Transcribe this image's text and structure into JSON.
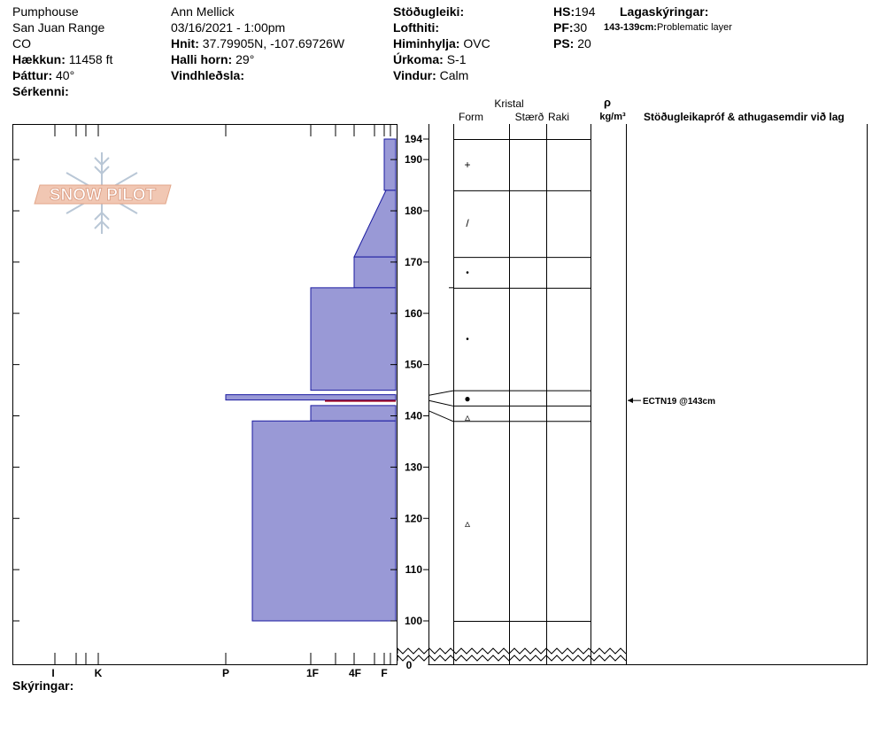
{
  "header": {
    "location": "Pumphouse",
    "range": "San Juan Range",
    "state": "CO",
    "elevation_label": "Hækkun:",
    "elevation": "11458 ft",
    "aspect_label": "Þáttur:",
    "aspect": "40°",
    "features_label": "Sérkenni:",
    "observer": "Ann Mellick",
    "datetime": "03/16/2021 - 1:00pm",
    "coords_label": "Hnit:",
    "coords": "37.79905N, -107.69726W",
    "slope_label": "Halli horn:",
    "slope": "29°",
    "wind_loading_label": "Vindhleðsla:",
    "stability_label": "Stöðugleiki:",
    "air_temp_label": "Lofthiti:",
    "sky_label": "Himinhylja:",
    "sky": "OVC",
    "precip_label": "Úrkoma:",
    "precip": "S-1",
    "wind_label": "Vindur:",
    "wind": "Calm",
    "hs_label": "HS:",
    "hs": "194",
    "pf_label": "PF:",
    "pf": "30",
    "ps_label": "PS:",
    "ps": "20",
    "layer_notes_label": "Lagaskýringar:",
    "layer_note_range": "143-139cm:",
    "layer_note_text": "Problematic layer",
    "comments_label": "Skýringar:"
  },
  "logo": {
    "text": "SNOW PILOT"
  },
  "columns": {
    "crystal": "Kristal",
    "form": "Form",
    "size": "Stærð",
    "moisture": "Raki",
    "density_symbol": "ρ",
    "density_unit": "kg/m³",
    "stability_tests": "Stöðugleikapróf & athugasemdir við lag"
  },
  "chart_data": {
    "type": "area",
    "title": "",
    "xlabel": "",
    "ylabel": "",
    "y_axis": {
      "range": [
        100,
        194
      ],
      "ticks": [
        100,
        110,
        120,
        130,
        140,
        150,
        160,
        170,
        180,
        190,
        194
      ],
      "zero_label": "0",
      "broken_axis": true
    },
    "hardness_axis": {
      "labels": [
        "I",
        "K",
        "P",
        "1F",
        "4F",
        "F"
      ],
      "reversed": true
    },
    "layers": [
      {
        "top": 194,
        "bottom": 184,
        "hardness": "F",
        "grain": "+"
      },
      {
        "top": 184,
        "bottom": 171,
        "hardness": "4F",
        "hardness_bottom": "F",
        "grain": "/"
      },
      {
        "top": 171,
        "bottom": 165,
        "hardness": "4F",
        "grain": "•"
      },
      {
        "top": 165,
        "bottom": 145,
        "hardness": "1F",
        "grain": "•"
      },
      {
        "top": 145,
        "bottom": 142,
        "hardness": "P",
        "grain": "●"
      },
      {
        "top": 142,
        "bottom": 139,
        "hardness": "1F",
        "grain": "▵"
      },
      {
        "top": 139,
        "bottom": 100,
        "hardness": "P-",
        "grain": "▵"
      }
    ],
    "problem_layer_marker": 143,
    "stability_tests": [
      {
        "depth": 143,
        "text": "ECTN19 @143cm"
      }
    ]
  }
}
